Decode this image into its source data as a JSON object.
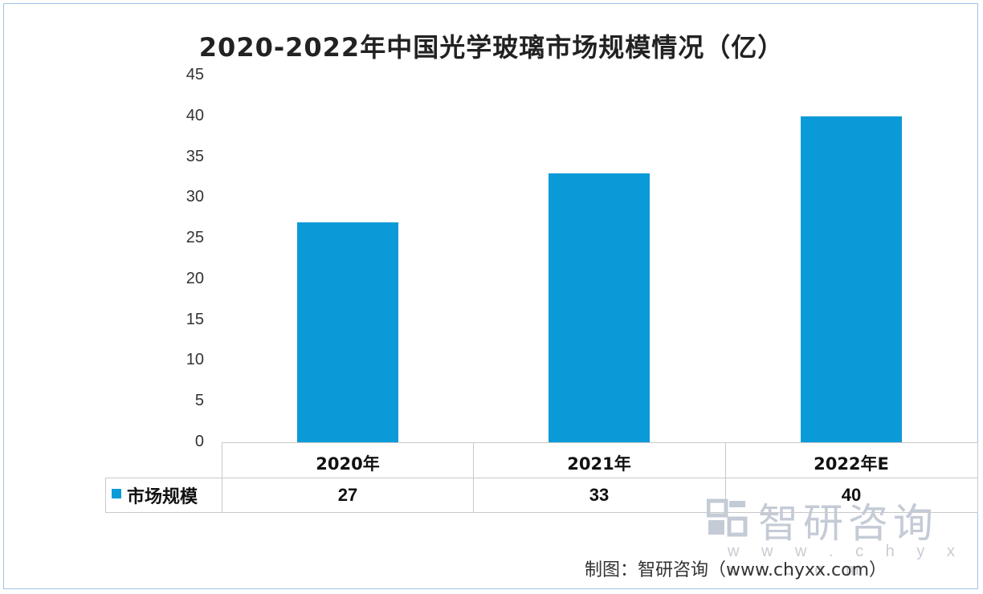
{
  "chart_data": {
    "type": "bar",
    "title": "2020-2022年中国光学玻璃市场规模情况（亿）",
    "categories": [
      "2020年",
      "2021年",
      "2022年E"
    ],
    "series": [
      {
        "name": "市场规模",
        "values": [
          27,
          33,
          40
        ],
        "color": "#0b9ad8"
      }
    ],
    "yticks": [
      "0",
      "5",
      "10",
      "15",
      "20",
      "25",
      "30",
      "35",
      "40",
      "45"
    ],
    "ylim": [
      0,
      45
    ],
    "grid": false,
    "legend": "left of data table",
    "data_table": true,
    "xlabel": "",
    "ylabel": ""
  },
  "watermark": {
    "brand": "智研咨询",
    "url": "w w w . c h y x x . c o m",
    "icon": "chyxx-logo-icon"
  },
  "source_note": "制图：智研咨询（www.chyxx.com）"
}
